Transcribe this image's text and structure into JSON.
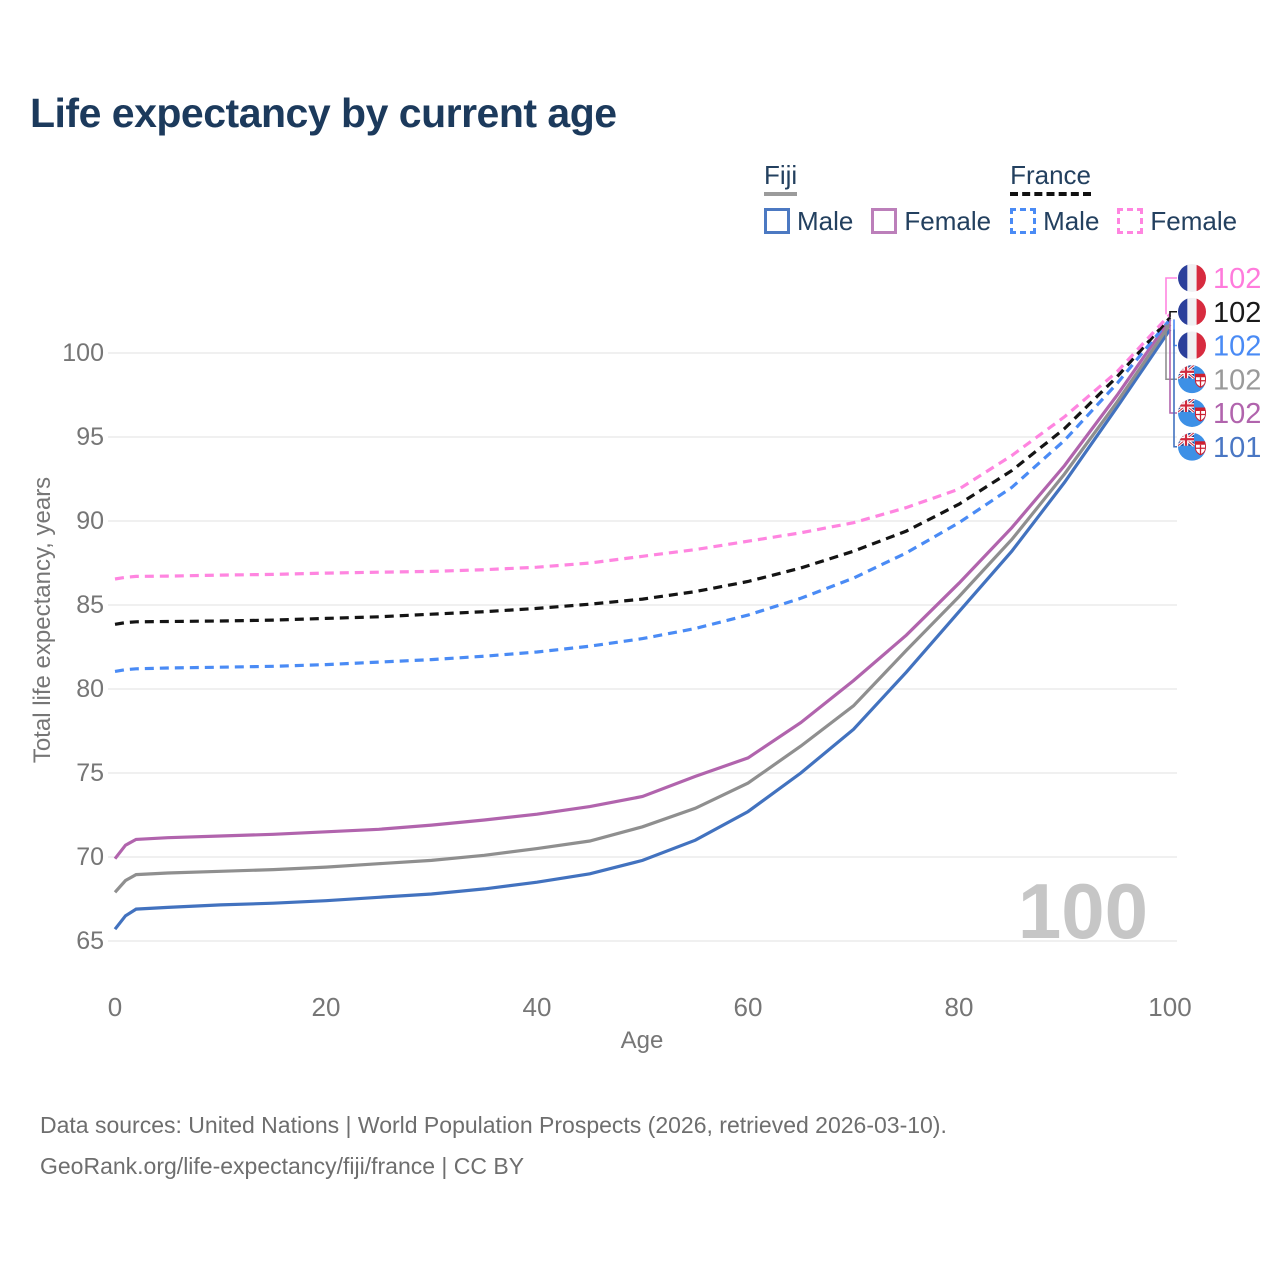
{
  "title": "Life expectancy by current age",
  "watermark": "100",
  "legend": {
    "groups": [
      {
        "label": "Fiji",
        "underline_color": "#9b9b9b",
        "underline_dashed": false,
        "items": [
          {
            "label": "Male",
            "color": "#4c79c2",
            "dashed": false
          },
          {
            "label": "Female",
            "color": "#bc7fba",
            "dashed": false
          }
        ]
      },
      {
        "label": "France",
        "underline_color": "#111111",
        "underline_dashed": true,
        "items": [
          {
            "label": "Male",
            "color": "#4a8bf5",
            "dashed": true
          },
          {
            "label": "Female",
            "color": "#ff85e0",
            "dashed": true
          }
        ]
      }
    ]
  },
  "footer": {
    "line1": "Data sources: United Nations | World Population Prospects (2026, retrieved 2026-03-10).",
    "line2": "GeoRank.org/life-expectancy/fiji/france | CC BY"
  },
  "chart_data": {
    "type": "line",
    "title": "Life expectancy by current age",
    "xlabel": "Age",
    "ylabel": "Total life expectancy, years",
    "xticks": [
      0,
      20,
      40,
      60,
      80,
      100
    ],
    "yticks": [
      65,
      70,
      75,
      80,
      85,
      90,
      95,
      100
    ],
    "xlim": [
      0,
      100
    ],
    "ylim": [
      65,
      102.5
    ],
    "grid": true,
    "legend_position": "top-right",
    "x": [
      0,
      1,
      2,
      5,
      10,
      15,
      20,
      25,
      30,
      35,
      40,
      45,
      50,
      55,
      60,
      65,
      70,
      75,
      80,
      85,
      90,
      95,
      100
    ],
    "series": [
      {
        "id": "france-female",
        "name": "France — Female",
        "country": "France",
        "sex": "Female",
        "flag": "france",
        "color": "#ff85e0",
        "label_color": "#ff7bdc",
        "dashed": true,
        "end_label": "102",
        "values": [
          86.55,
          86.65,
          86.7,
          86.72,
          86.78,
          86.82,
          86.9,
          86.95,
          87.0,
          87.1,
          87.25,
          87.5,
          87.9,
          88.3,
          88.8,
          89.3,
          89.9,
          90.8,
          91.9,
          93.9,
          96.2,
          98.9,
          102.3
        ]
      },
      {
        "id": "france-both",
        "name": "France — Both sexes",
        "country": "France",
        "sex": "Both",
        "flag": "france",
        "color": "#141414",
        "label_color": "#1a1a1a",
        "dashed": true,
        "end_label": "102",
        "values": [
          83.85,
          83.95,
          84.0,
          84.02,
          84.05,
          84.1,
          84.2,
          84.3,
          84.45,
          84.6,
          84.8,
          85.05,
          85.35,
          85.8,
          86.4,
          87.2,
          88.2,
          89.4,
          91.0,
          93.0,
          95.5,
          98.6,
          102.1
        ]
      },
      {
        "id": "france-male",
        "name": "France — Male",
        "country": "France",
        "sex": "Male",
        "flag": "france",
        "color": "#4a8bf5",
        "label_color": "#4a8bf5",
        "dashed": true,
        "end_label": "102",
        "values": [
          81.05,
          81.15,
          81.2,
          81.25,
          81.3,
          81.35,
          81.45,
          81.6,
          81.75,
          81.95,
          82.2,
          82.55,
          83.0,
          83.6,
          84.4,
          85.4,
          86.6,
          88.1,
          89.9,
          92.0,
          94.8,
          98.2,
          102.0
        ]
      },
      {
        "id": "fiji-both",
        "name": "Fiji — Both sexes",
        "country": "Fiji",
        "sex": "Both",
        "flag": "fiji",
        "color": "#8f8f8f",
        "label_color": "#9a9a9a",
        "dashed": false,
        "end_label": "102",
        "values": [
          67.9,
          68.6,
          68.95,
          69.05,
          69.15,
          69.25,
          69.4,
          69.6,
          69.8,
          70.1,
          70.5,
          70.95,
          71.8,
          72.9,
          74.4,
          76.6,
          79.0,
          82.3,
          85.5,
          88.9,
          92.8,
          97.1,
          101.7
        ]
      },
      {
        "id": "fiji-female",
        "name": "Fiji — Female",
        "country": "Fiji",
        "sex": "Female",
        "flag": "fiji",
        "color": "#b164ad",
        "label_color": "#b164ad",
        "dashed": false,
        "end_label": "102",
        "values": [
          69.9,
          70.7,
          71.05,
          71.15,
          71.25,
          71.35,
          71.5,
          71.65,
          71.9,
          72.2,
          72.55,
          73.0,
          73.6,
          74.8,
          75.9,
          78.0,
          80.5,
          83.2,
          86.3,
          89.6,
          93.3,
          97.5,
          102.0
        ]
      },
      {
        "id": "fiji-male",
        "name": "Fiji — Male",
        "country": "Fiji",
        "sex": "Male",
        "flag": "fiji",
        "color": "#4272bf",
        "label_color": "#4a77c4",
        "dashed": false,
        "end_label": "101",
        "values": [
          65.7,
          66.5,
          66.9,
          67.0,
          67.15,
          67.25,
          67.4,
          67.6,
          67.8,
          68.1,
          68.5,
          69.0,
          69.8,
          71.0,
          72.7,
          75.0,
          77.6,
          81.0,
          84.6,
          88.2,
          92.3,
          96.8,
          101.4
        ]
      }
    ]
  }
}
